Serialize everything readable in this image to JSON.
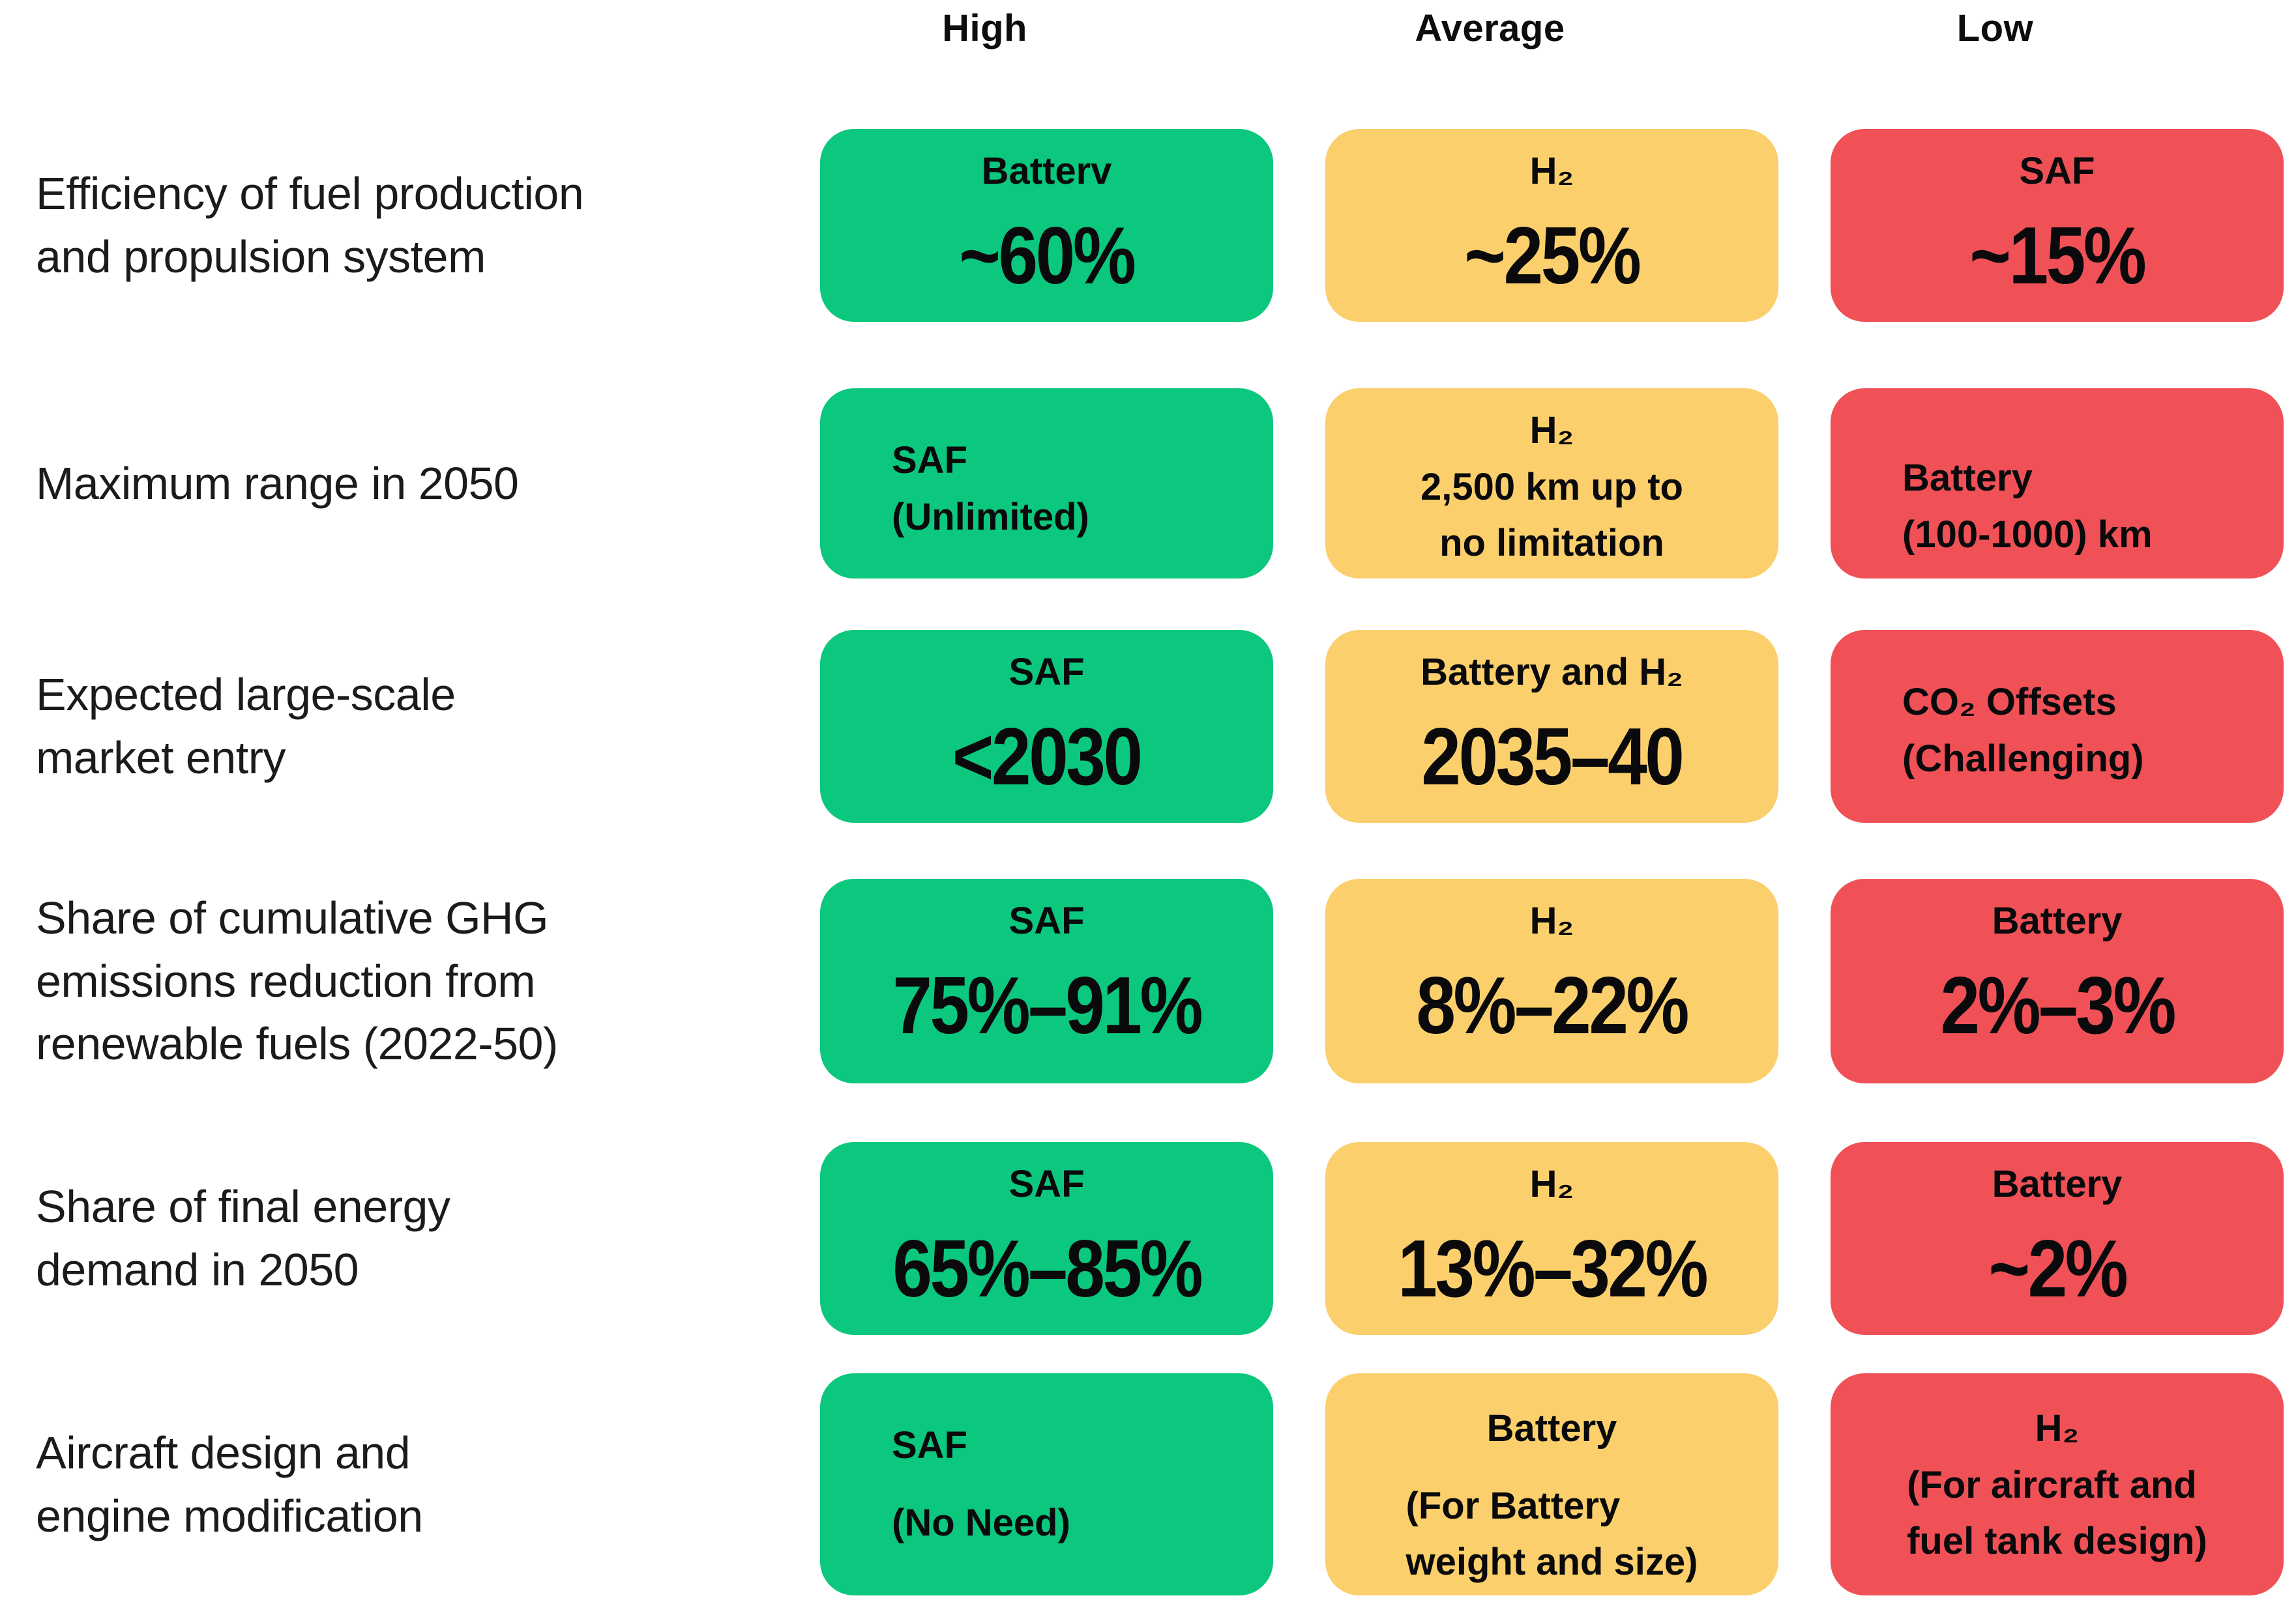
{
  "header": {
    "columns": [
      "High",
      "Average",
      "Low"
    ]
  },
  "colors": {
    "high": "#0cc77e",
    "average": "#fbd06c",
    "low": "#ef5157",
    "text": "#0a0a0c"
  },
  "rows": [
    {
      "label": "Efficiency of fuel production\nand propulsion system",
      "cells": [
        {
          "title": "Batterv",
          "value": "~60%"
        },
        {
          "title": "H₂",
          "value": "~25%"
        },
        {
          "title": "SAF",
          "value": "~15%"
        }
      ]
    },
    {
      "label": "Maximum range in 2050",
      "cells": [
        {
          "title": "SAF",
          "value": "(Unlimited)"
        },
        {
          "title": "H₂",
          "value": "2,500 km up to\nno limitation"
        },
        {
          "title": "Battery",
          "value": "(100-1000) km"
        }
      ]
    },
    {
      "label": "Expected large-scale\nmarket entry",
      "cells": [
        {
          "title": "SAF",
          "value": "<2030"
        },
        {
          "title": "Battery and H₂",
          "value": "2035–40"
        },
        {
          "title": "CO₂ Offsets",
          "value": "(Challenging)"
        }
      ]
    },
    {
      "label": "Share of cumulative GHG\nemissions reduction from\nrenewable fuels (2022-50)",
      "cells": [
        {
          "title": "SAF",
          "value": "75%–91%"
        },
        {
          "title": "H₂",
          "value": "8%–22%"
        },
        {
          "title": "Battery",
          "value": "2%–3%"
        }
      ]
    },
    {
      "label": "Share of final energy\ndemand in 2050",
      "cells": [
        {
          "title": "SAF",
          "value": "65%–85%"
        },
        {
          "title": "H₂",
          "value": "13%–32%"
        },
        {
          "title": "Battery",
          "value": "~2%"
        }
      ]
    },
    {
      "label": "Aircraft design and\nengine modification",
      "cells": [
        {
          "title": "SAF",
          "value": "(No Need)"
        },
        {
          "title": "Battery",
          "value": "(For Battery\nweight and size)"
        },
        {
          "title": "H₂",
          "value": "(For aircraft and\nfuel tank design)"
        }
      ]
    }
  ]
}
